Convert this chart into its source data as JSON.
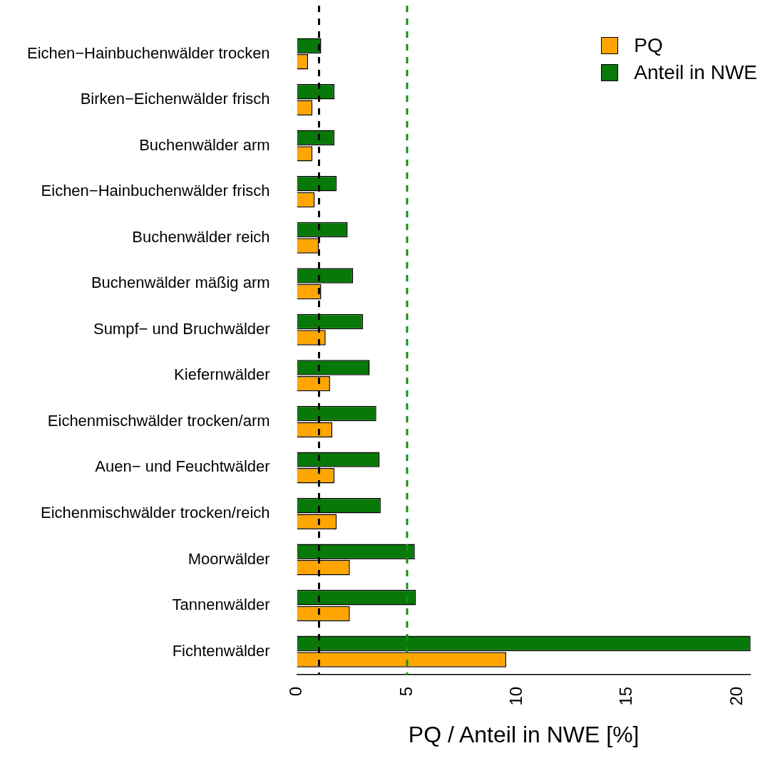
{
  "chart_data": {
    "type": "bar",
    "orientation": "horizontal",
    "xlabel": "PQ / Anteil in NWE [%]",
    "categories": [
      "Eichen−Hainbuchenwälder trocken",
      "Birken−Eichenwälder frisch",
      "Buchenwälder arm",
      "Eichen−Hainbuchenwälder frisch",
      "Buchenwälder reich",
      "Buchenwälder mäßig arm",
      "Sumpf− und Bruchwälder",
      "Kiefernwälder",
      "Eichenmischwälder trocken/arm",
      "Auen− und Feuchtwälder",
      "Eichenmischwälder trocken/reich",
      "Moorwälder",
      "Tannenwälder",
      "Fichtenwälder"
    ],
    "series": [
      {
        "name": "Anteil in NWE",
        "color": "#087808",
        "values": [
          1.1,
          1.7,
          1.7,
          1.8,
          2.3,
          2.55,
          3.0,
          3.3,
          3.6,
          3.75,
          3.8,
          5.35,
          5.4,
          20.6
        ]
      },
      {
        "name": "PQ",
        "color": "#ffa500",
        "values": [
          0.5,
          0.7,
          0.7,
          0.8,
          1.0,
          1.1,
          1.3,
          1.5,
          1.6,
          1.7,
          1.8,
          2.4,
          2.4,
          9.5
        ]
      }
    ],
    "xlim": [
      0,
      20.6
    ],
    "xticks": [
      0,
      5,
      10,
      15,
      20
    ],
    "grid": false,
    "legend": "top right",
    "ref_lines": [
      {
        "axis": "x",
        "value": 1,
        "color": "#000000",
        "line_style": "dashed"
      },
      {
        "axis": "x",
        "value": 5,
        "color": "#109010",
        "line_style": "dashed"
      }
    ]
  }
}
